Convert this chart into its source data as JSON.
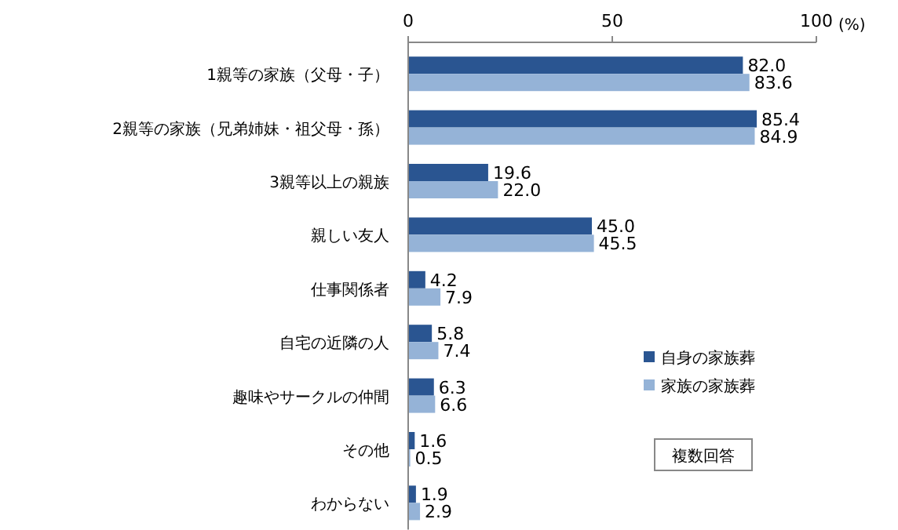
{
  "chart_data": {
    "type": "bar",
    "orientation": "horizontal",
    "categories": [
      "1親等の家族（父母・子）",
      "2親等の家族（兄弟姉妹・祖父母・孫）",
      "3親等以上の親族",
      "親しい友人",
      "仕事関係者",
      "自宅の近隣の人",
      "趣味やサークルの仲間",
      "その他",
      "わからない"
    ],
    "series": [
      {
        "name": "自身の家族葬",
        "color": "#2a5591",
        "values": [
          82.0,
          85.4,
          19.6,
          45.0,
          4.2,
          5.8,
          6.3,
          1.6,
          1.9
        ],
        "value_labels": [
          "82.0",
          "85.4",
          "19.6",
          "45.0",
          "4.2",
          "5.8",
          "6.3",
          "1.6",
          "1.9"
        ]
      },
      {
        "name": "家族の家族葬",
        "color": "#95b3d7",
        "values": [
          83.6,
          84.9,
          22.0,
          45.5,
          7.9,
          7.4,
          6.6,
          0.5,
          2.9
        ],
        "value_labels": [
          "83.6",
          "84.9",
          "22.0",
          "45.5",
          "7.9",
          "7.4",
          "6.6",
          "0.5",
          "2.9"
        ]
      }
    ],
    "xlim": [
      0,
      100
    ],
    "xticks": [
      0,
      50,
      100
    ],
    "xlabel": "(%)",
    "legend": "right",
    "grid": false,
    "annotations": [
      "複数回答"
    ]
  }
}
